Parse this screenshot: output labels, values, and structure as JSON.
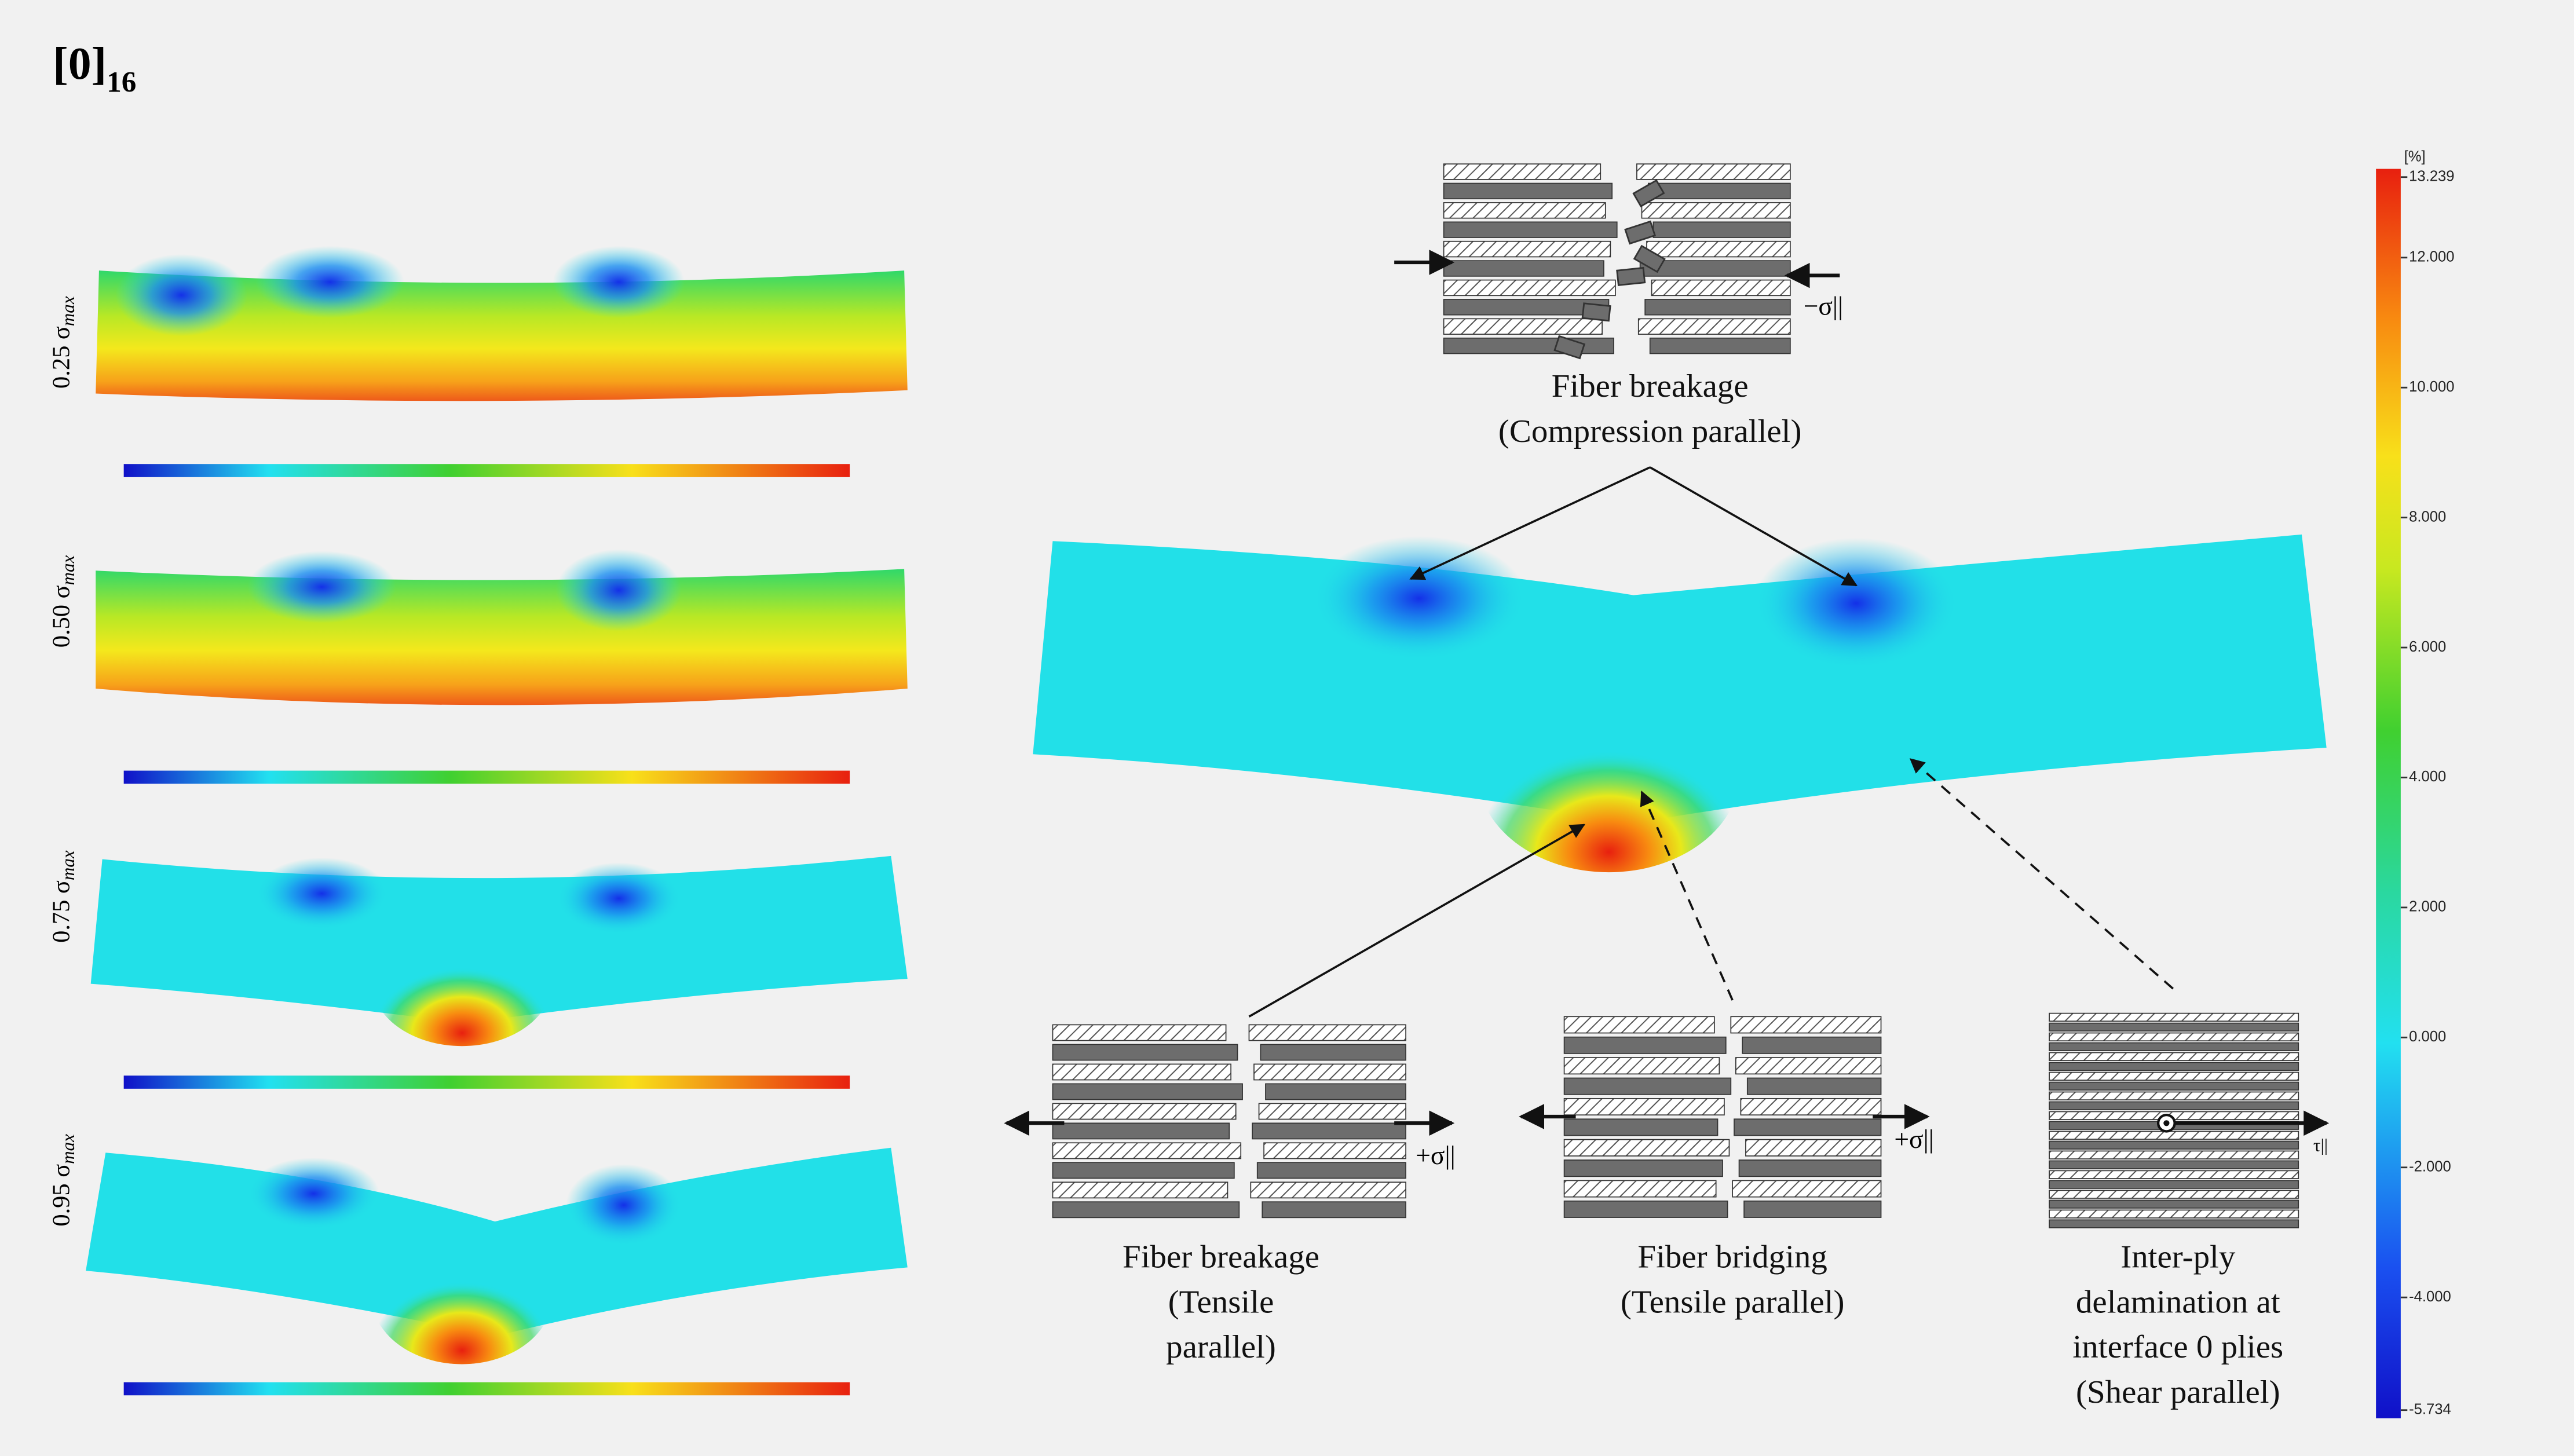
{
  "title": {
    "main": "[0]",
    "sub": "16"
  },
  "load_levels": [
    {
      "value": "0.25 σ",
      "sub": "max"
    },
    {
      "value": "0.50 σ",
      "sub": "max"
    },
    {
      "value": "0.75 σ",
      "sub": "max"
    },
    {
      "value": "0.95 σ",
      "sub": "max"
    }
  ],
  "colorbar": {
    "unit": "[%]",
    "ticks": [
      "13.239",
      "12.000",
      "10.000",
      "8.000",
      "6.000",
      "4.000",
      "2.000",
      "0.000",
      "-2.000",
      "-4.000",
      "-5.734"
    ]
  },
  "mechanisms": [
    {
      "lines": [
        "Fiber breakage",
        "(Compression parallel)"
      ],
      "force": "−σ||"
    },
    {
      "lines": [
        "Fiber breakage",
        "(Tensile",
        "parallel)"
      ],
      "force": "+σ||"
    },
    {
      "lines": [
        "Fiber bridging",
        "(Tensile parallel)"
      ],
      "force": "+σ||"
    },
    {
      "lines": [
        "Inter-ply",
        "delamination at",
        "interface 0 plies",
        "(Shear parallel)"
      ],
      "force": "τ||"
    }
  ]
}
